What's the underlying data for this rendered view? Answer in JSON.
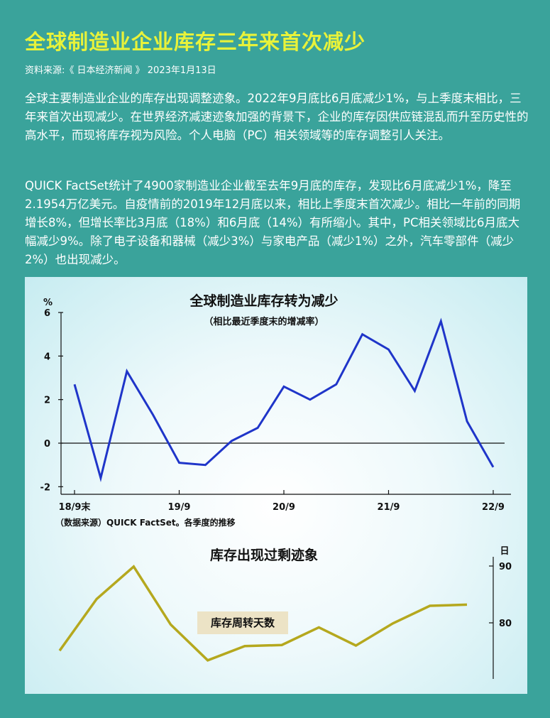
{
  "article": {
    "title": "全球制造业企业库存三年来首次减少",
    "source": "资料来源:《 日本经济新闻 》 2023年1月13日",
    "paragraph1": "全球主要制造业企业的库存出现调整迹象。2022年9月底比6月底减少1%，与上季度末相比，三年来首次出现减少。在世界经济减速迹象加强的背景下，企业的库存因供应链混乱而升至历史性的高水平，而现将库存视为风险。个人电脑（PC）相关领域等的库存调整引人关注。",
    "paragraph2": "QUICK FactSet统计了4900家制造业企业截至去年9月底的库存，发现比6月底减少1%，降至2.1954万亿美元。自疫情前的2019年12月底以来，相比上季度末首次减少。相比一年前的同期增长8%，但增长率比3月底（18%）和6月底（14%）有所缩小。其中，PC相关领域比6月底大幅减少9%。除了电子设备和器械（减少3%）与家电产品（减少1%）之外，汽车零部件（减少2%）也出现减少。"
  },
  "colors": {
    "background": "#3aa39b",
    "title": "#e8f23a",
    "line1": "#1f35c9",
    "line2": "#b5a81e"
  },
  "chart_data": [
    {
      "type": "line",
      "title": "全球制造业库存转为减少",
      "subtitle": "（相比最近季度末的增减率）",
      "ylabel": "%",
      "note": "（数据来源）QUICK FactSet。各季度的推移",
      "ylim": [
        -2,
        6
      ],
      "yticks": [
        "6",
        "4",
        "2",
        "0",
        "-2"
      ],
      "xticks": [
        "18/9末",
        "19/9",
        "20/9",
        "21/9",
        "22/9"
      ],
      "x": [
        "2018-09",
        "2018-12",
        "2019-03",
        "2019-06",
        "2019-09",
        "2019-12",
        "2020-03",
        "2020-06",
        "2020-09",
        "2020-12",
        "2021-03",
        "2021-06",
        "2021-09",
        "2021-12",
        "2022-03",
        "2022-06",
        "2022-09"
      ],
      "values": [
        2.7,
        -1.6,
        3.3,
        1.3,
        -0.9,
        -1.0,
        0.1,
        0.7,
        2.6,
        2.0,
        2.7,
        5.0,
        4.3,
        2.4,
        5.6,
        1.0,
        -1.1
      ],
      "grid": false
    },
    {
      "type": "line",
      "title": "库存出现过剩迹象",
      "series_label": "库存周转天数",
      "ylabel": "日",
      "yticks": [
        "90",
        "80"
      ],
      "ylim": [
        70,
        92
      ],
      "axis_position": "right",
      "values": [
        75.1,
        84.2,
        89.9,
        79.7,
        73.4,
        75.9,
        76.1,
        79.2,
        76.0,
        79.9,
        83.0,
        83.2
      ],
      "grid": false
    }
  ]
}
